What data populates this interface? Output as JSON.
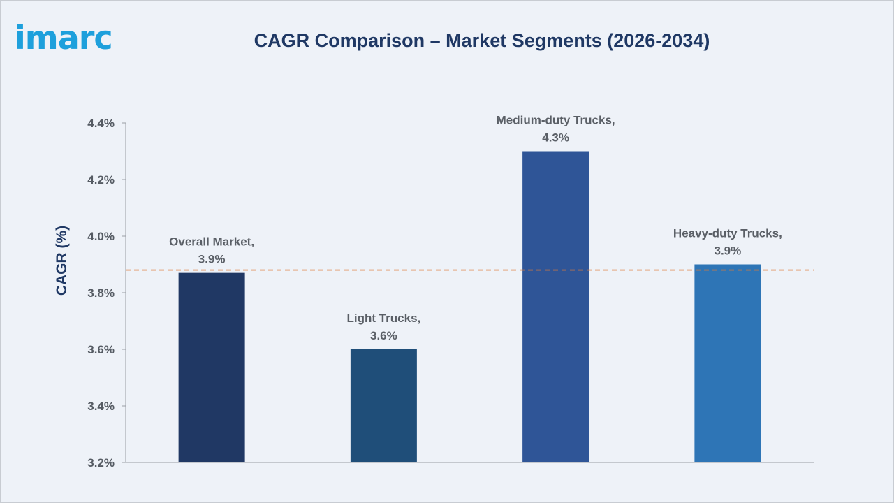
{
  "brand": {
    "logo_text": "imarc",
    "logo_color": "#1ea0dc"
  },
  "chart_data": {
    "type": "bar",
    "title": "CAGR Comparison – Market Segments (2026-2034)",
    "ylabel": "CAGR (%)",
    "xlabel": "",
    "ylim": [
      3.2,
      4.4
    ],
    "y_ticks": [
      "3.2%",
      "3.4%",
      "3.6%",
      "3.8%",
      "4.0%",
      "4.2%",
      "4.4%"
    ],
    "categories": [
      "Overall Market",
      "Light Trucks",
      "Medium-duty Trucks",
      "Heavy-duty Trucks"
    ],
    "values": [
      3.87,
      3.6,
      4.3,
      3.9
    ],
    "data_labels": [
      [
        "Overall Market,",
        "3.9%"
      ],
      [
        "Light Trucks,",
        "3.6%"
      ],
      [
        "Medium-duty Trucks,",
        "4.3%"
      ],
      [
        "Heavy-duty Trucks,",
        "3.9%"
      ]
    ],
    "bar_colors": [
      "#203864",
      "#1f4e79",
      "#2f5597",
      "#2e75b6"
    ],
    "reference_line": {
      "value": 3.88,
      "style": "dashed",
      "color": "#e07b39"
    },
    "grid": false
  }
}
